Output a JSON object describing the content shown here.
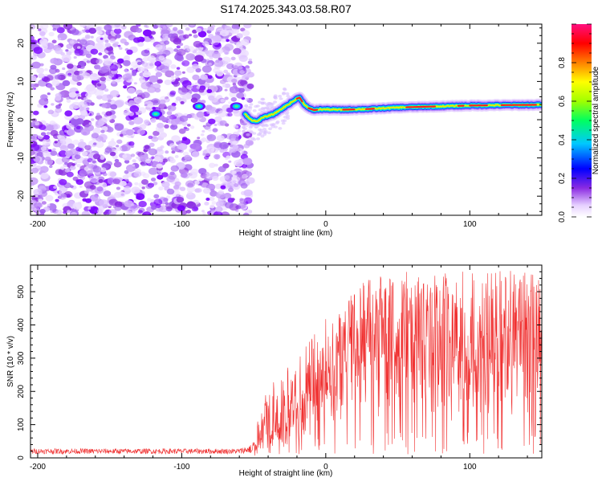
{
  "title": "S174.2025.343.03.58.R07",
  "chart_data": [
    {
      "type": "heatmap",
      "xlabel": "Height of straight line (km)",
      "ylabel": "Frequency (Hz)",
      "xlim": [
        -205,
        150
      ],
      "ylim": [
        -25,
        25
      ],
      "xticks": [
        -200,
        -100,
        0,
        100
      ],
      "yticks": [
        -20,
        -10,
        0,
        10,
        20
      ],
      "grid": false,
      "noise_region_x": [
        -205,
        -52
      ],
      "signal_ridge": {
        "x": [
          -56,
          -52,
          -48,
          -44,
          -40,
          -36,
          -32,
          -28,
          -24,
          -20,
          -18,
          -16,
          -12,
          -8,
          -4,
          0,
          10,
          20,
          30,
          40,
          50,
          60,
          80,
          100,
          120,
          150
        ],
        "freq": [
          1.5,
          0.0,
          -0.5,
          0.5,
          1.0,
          1.5,
          2.5,
          3.5,
          4.5,
          5.5,
          5.8,
          4.5,
          3.0,
          2.5,
          2.7,
          2.7,
          2.6,
          2.7,
          2.8,
          3.0,
          3.2,
          3.3,
          3.5,
          3.7,
          3.8,
          3.9
        ]
      },
      "scattered_blobs": [
        {
          "x": -118,
          "freq": 1.5
        },
        {
          "x": -88,
          "freq": 3.5
        },
        {
          "x": -62,
          "freq": 3.5
        }
      ],
      "colorbar": {
        "label": "Normalized spectral amplitude",
        "ticks": [
          0.0,
          0.2,
          0.4,
          0.6,
          0.8
        ],
        "range": [
          0,
          1
        ]
      }
    },
    {
      "type": "line",
      "xlabel": "Height of straight line (km)",
      "ylabel": "SNR (10 * v/v)",
      "xlim": [
        -205,
        150
      ],
      "ylim": [
        0,
        580
      ],
      "xticks": [
        -200,
        -100,
        0,
        100
      ],
      "yticks": [
        0,
        100,
        200,
        300,
        400,
        500
      ],
      "grid": false,
      "series": [
        {
          "name": "SNR",
          "color": "#f03030",
          "envelope": {
            "x": [
              -205,
              -60,
              -52,
              -42,
              -30,
              -20,
              -10,
              0,
              10,
              20,
              30,
              40,
              60,
              80,
              100,
              120,
              150
            ],
            "base": [
              12,
              12,
              14,
              25,
              60,
              110,
              160,
              200,
              240,
              300,
              340,
              360,
              350,
              340,
              330,
              320,
              330
            ],
            "peak": [
              28,
              28,
              40,
              200,
              260,
              300,
              360,
              420,
              460,
              520,
              540,
              560,
              560,
              560,
              560,
              565,
              560
            ]
          }
        }
      ]
    }
  ],
  "colors": {
    "noise": "#8a2be2",
    "line": "#f03030",
    "axis": "#000000",
    "frame": "#ffffff"
  }
}
